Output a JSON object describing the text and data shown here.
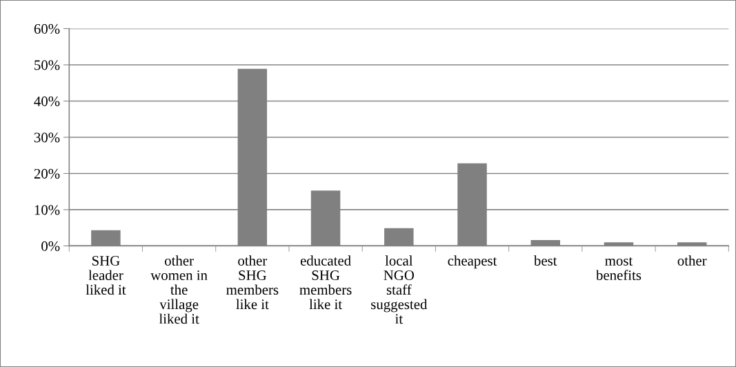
{
  "chart_data": {
    "type": "bar",
    "categories": [
      "SHG leader liked it",
      "other women in the village liked it",
      "other SHG members like it",
      "educated SHG members like it",
      "local NGO staff suggested it",
      "cheapest",
      "best",
      "most benefits",
      "other"
    ],
    "values": [
      4.3,
      0,
      48.9,
      15.3,
      4.9,
      22.8,
      1.6,
      1.0,
      1.0
    ],
    "color": "#808080",
    "ylim": [
      0,
      60
    ],
    "yticks": [
      {
        "value": 0,
        "label": "0%"
      },
      {
        "value": 10,
        "label": "10%"
      },
      {
        "value": 20,
        "label": "20%"
      },
      {
        "value": 30,
        "label": "30%"
      },
      {
        "value": 40,
        "label": "40%"
      },
      {
        "value": 50,
        "label": "50%"
      },
      {
        "value": 60,
        "label": "60%"
      }
    ],
    "grid": "y",
    "legend": false
  }
}
